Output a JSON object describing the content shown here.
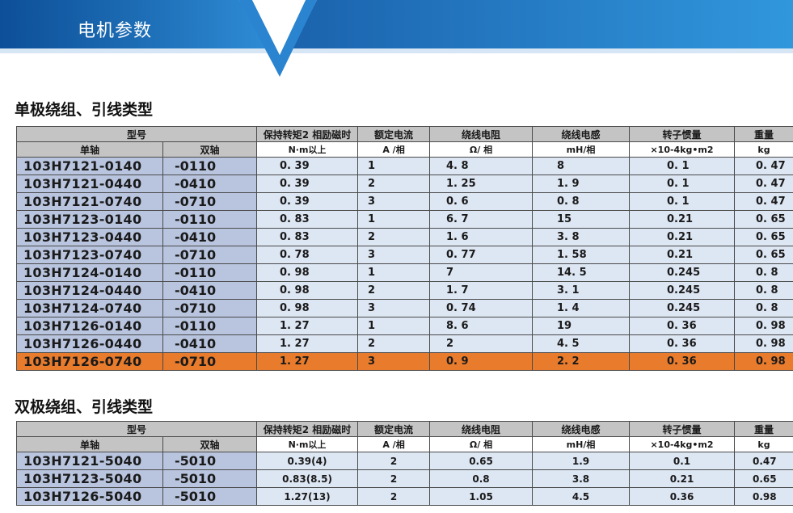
{
  "banner": {
    "title": "电机参数"
  },
  "colors": {
    "banner_blue": "#1e6fb6",
    "header_gray": "#c4c4c4",
    "model_col": "#b9c5df",
    "cell_bg": "#dde6f3",
    "highlight": "#e87b2c"
  },
  "unipolar": {
    "title": "单极绕组、引线类型",
    "header": {
      "model": "型号",
      "torque": "保持转矩2 相励磁时",
      "current": "额定电流",
      "resistance": "绕线电阻",
      "inductance": "绕线电感",
      "inertia": "转子惯量",
      "weight": "重量"
    },
    "subheader": {
      "single": "单轴",
      "dual": "双轴",
      "torque": "N·m以上",
      "current": "A /相",
      "resistance": "Ω/ 相",
      "inductance": "mH/相",
      "inertia": "×10-4kg•m2",
      "weight": "kg"
    },
    "rows": [
      {
        "single": "103H7121-0140",
        "dual": "-0110",
        "torque": "0. 39",
        "current": "1",
        "resistance": "4. 8",
        "inductance": "8",
        "inertia": "0. 1",
        "weight": "0. 47"
      },
      {
        "single": "103H7121-0440",
        "dual": "-0410",
        "torque": "0. 39",
        "current": "2",
        "resistance": "1. 25",
        "inductance": "1. 9",
        "inertia": "0. 1",
        "weight": "0. 47"
      },
      {
        "single": "103H7121-0740",
        "dual": "-0710",
        "torque": "0. 39",
        "current": "3",
        "resistance": "0. 6",
        "inductance": "0. 8",
        "inertia": "0. 1",
        "weight": "0. 47"
      },
      {
        "single": "103H7123-0140",
        "dual": "-0110",
        "torque": "0. 83",
        "current": "1",
        "resistance": "6. 7",
        "inductance": "15",
        "inertia": "0.21",
        "weight": "0. 65"
      },
      {
        "single": "103H7123-0440",
        "dual": "-0410",
        "torque": "0. 83",
        "current": "2",
        "resistance": "1. 6",
        "inductance": "3. 8",
        "inertia": "0.21",
        "weight": "0. 65"
      },
      {
        "single": "103H7123-0740",
        "dual": "-0710",
        "torque": "0. 78",
        "current": "3",
        "resistance": "0. 77",
        "inductance": "1. 58",
        "inertia": "0.21",
        "weight": "0. 65"
      },
      {
        "single": "103H7124-0140",
        "dual": "-0110",
        "torque": "0. 98",
        "current": "1",
        "resistance": "7",
        "inductance": "14. 5",
        "inertia": "0.245",
        "weight": "0. 8"
      },
      {
        "single": "103H7124-0440",
        "dual": "-0410",
        "torque": "0. 98",
        "current": "2",
        "resistance": "1. 7",
        "inductance": "3. 1",
        "inertia": "0.245",
        "weight": "0. 8"
      },
      {
        "single": "103H7124-0740",
        "dual": "-0710",
        "torque": "0. 98",
        "current": "3",
        "resistance": "0. 74",
        "inductance": "1. 4",
        "inertia": "0.245",
        "weight": "0. 8"
      },
      {
        "single": "103H7126-0140",
        "dual": "-0110",
        "torque": "1. 27",
        "current": "1",
        "resistance": "8. 6",
        "inductance": "19",
        "inertia": "0. 36",
        "weight": "0. 98"
      },
      {
        "single": "103H7126-0440",
        "dual": "-0410",
        "torque": "1. 27",
        "current": "2",
        "resistance": "2",
        "inductance": "4. 5",
        "inertia": "0. 36",
        "weight": "0. 98"
      },
      {
        "single": "103H7126-0740",
        "dual": "-0710",
        "torque": "1. 27",
        "current": "3",
        "resistance": "0. 9",
        "inductance": "2. 2",
        "inertia": "0. 36",
        "weight": "0. 98"
      }
    ]
  },
  "bipolar": {
    "title": "双极绕组、引线类型",
    "header": {
      "model": "型号",
      "torque": "保持转矩2 相励磁时",
      "current": "额定电流",
      "resistance": "绕线电阻",
      "inductance": "绕线电感",
      "inertia": "转子惯量",
      "weight": "重量"
    },
    "subheader": {
      "single": "单轴",
      "dual": "双轴",
      "torque": "N·m以上",
      "current": "A /相",
      "resistance": "Ω/ 相",
      "inductance": "mH/相",
      "inertia": "×10-4kg•m2",
      "weight": "kg"
    },
    "rows": [
      {
        "single": "103H7121-5040",
        "dual": "-5010",
        "torque": "0.39(4)",
        "current": "2",
        "resistance": "0.65",
        "inductance": "1.9",
        "inertia": "0.1",
        "weight": "0.47"
      },
      {
        "single": "103H7123-5040",
        "dual": "-5010",
        "torque": "0.83(8.5)",
        "current": "2",
        "resistance": "0.8",
        "inductance": "3.8",
        "inertia": "0.21",
        "weight": "0.65"
      },
      {
        "single": "103H7126-5040",
        "dual": "-5010",
        "torque": "1.27(13)",
        "current": "2",
        "resistance": "1.05",
        "inductance": "4.5",
        "inertia": "0.36",
        "weight": "0.98"
      }
    ]
  }
}
